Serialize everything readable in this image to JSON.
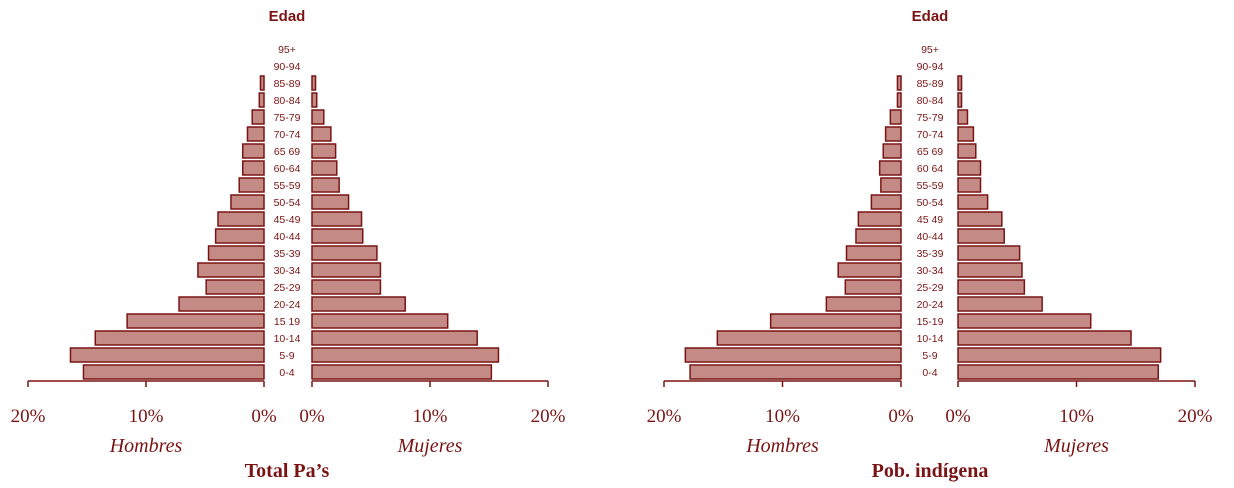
{
  "colors": {
    "bar_fill": "#c48a85",
    "bar_stroke": "#7a1414",
    "text": "#7a1414",
    "axis": "#7a1414"
  },
  "chart_data": [
    {
      "type": "bar",
      "title": "Total Pa’s",
      "age_axis_title": "Edad",
      "left_label": "Hombres",
      "right_label": "Mujeres",
      "categories": [
        "0-4",
        "5-9",
        "10-14",
        "15 19",
        "20-24",
        "25-29",
        "30-34",
        "35-39",
        "40-44",
        "45-49",
        "50-54",
        "55-59",
        "60-64",
        "65 69",
        "70-74",
        "75-79",
        "80-84",
        "85-89",
        "90-94",
        "95+"
      ],
      "left_ticks": [
        "20%",
        "10%",
        "0%"
      ],
      "right_ticks": [
        "0%",
        "10%",
        "20%"
      ],
      "xlim": [
        0,
        20
      ],
      "series": [
        {
          "name": "Hombres",
          "values": [
            15.3,
            16.4,
            14.3,
            11.6,
            7.2,
            4.9,
            5.6,
            4.7,
            4.1,
            3.9,
            2.8,
            2.1,
            1.8,
            1.8,
            1.4,
            1.0,
            0.4,
            0.3,
            0,
            0
          ]
        },
        {
          "name": "Mujeres",
          "values": [
            15.2,
            15.8,
            14.0,
            11.5,
            7.9,
            5.8,
            5.8,
            5.5,
            4.3,
            4.2,
            3.1,
            2.3,
            2.1,
            2.0,
            1.6,
            1.0,
            0.4,
            0.3,
            0,
            0
          ]
        }
      ]
    },
    {
      "type": "bar",
      "title": "Pob. indígena",
      "age_axis_title": "Edad",
      "left_label": "Hombres",
      "right_label": "Mujeres",
      "categories": [
        "0-4",
        "5-9",
        "10-14",
        "15-19",
        "20-24",
        "25-29",
        "30-34",
        "35-39",
        "40-44",
        "45 49",
        "50-54",
        "55-59",
        "60 64",
        "65 69",
        "70-74",
        "75-79",
        "80-84",
        "85-89",
        "90-94",
        "95+"
      ],
      "left_ticks": [
        "20%",
        "10%",
        "0%"
      ],
      "right_ticks": [
        "0%",
        "10%",
        "20%"
      ],
      "xlim": [
        0,
        20
      ],
      "series": [
        {
          "name": "Hombres",
          "values": [
            17.8,
            18.2,
            15.5,
            11.0,
            6.3,
            4.7,
            5.3,
            4.6,
            3.8,
            3.6,
            2.5,
            1.7,
            1.8,
            1.5,
            1.3,
            0.9,
            0.3,
            0.3,
            0,
            0
          ]
        },
        {
          "name": "Mujeres",
          "values": [
            16.9,
            17.1,
            14.6,
            11.2,
            7.1,
            5.6,
            5.4,
            5.2,
            3.9,
            3.7,
            2.5,
            1.9,
            1.9,
            1.5,
            1.3,
            0.8,
            0.3,
            0.3,
            0,
            0
          ]
        }
      ]
    }
  ]
}
